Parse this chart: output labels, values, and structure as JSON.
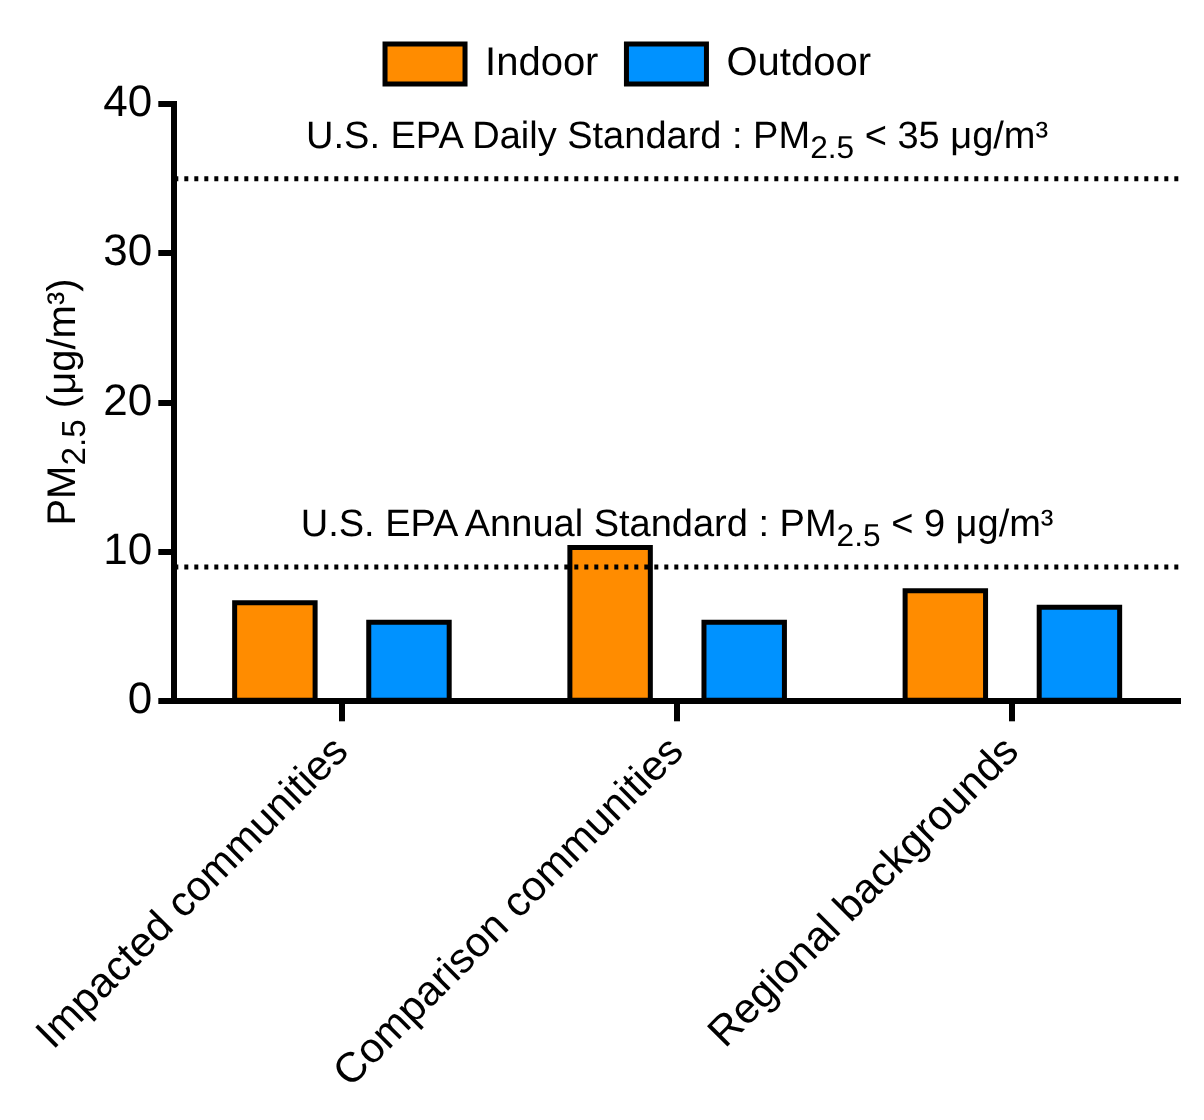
{
  "chart_data": {
    "type": "bar",
    "ylabel": "PM$_{2.5}$ (μg/m³)",
    "categories": [
      "Impacted communities",
      "Comparison communities",
      "Regional backgrounds"
    ],
    "series": [
      {
        "name": "Indoor",
        "color": "#ff8c00",
        "values": [
          6.6,
          10.3,
          7.4
        ]
      },
      {
        "name": "Outdoor",
        "color": "#0092ff",
        "values": [
          5.3,
          5.3,
          6.3
        ]
      }
    ],
    "ylim": [
      0,
      40
    ],
    "yticks": [
      0,
      10,
      20,
      30,
      40
    ],
    "grid": false,
    "legend": "top",
    "ref_lines": [
      {
        "axis": "y",
        "value": 35,
        "label": "U.S. EPA Daily Standard : PM$_{2.5}$ < 35 μg/m³",
        "color": "#000000",
        "line_style": "dotted"
      },
      {
        "axis": "y",
        "value": 9,
        "label": "U.S. EPA Annual Standard : PM$_{2.5}$ < 9 μg/m³",
        "color": "#000000",
        "line_style": "dotted"
      }
    ]
  }
}
